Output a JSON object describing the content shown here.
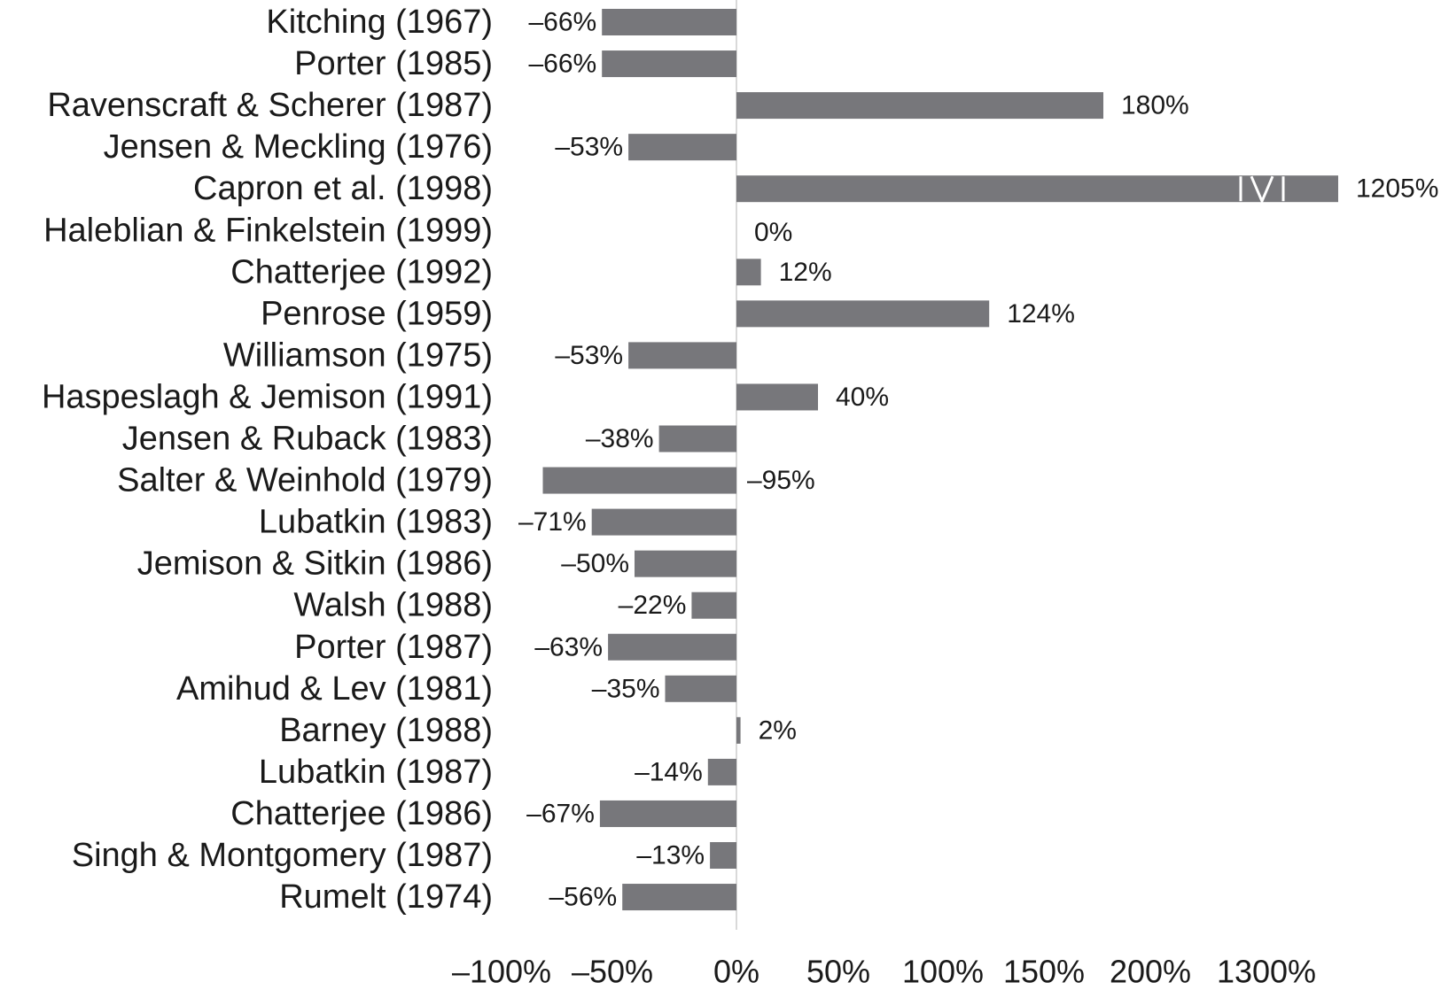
{
  "chart_data": {
    "type": "bar",
    "orientation": "horizontal",
    "categories": [
      "Kitching (1967)",
      "Porter (1985)",
      "Ravenscraft & Scherer (1987)",
      "Jensen & Meckling (1976)",
      "Capron et al. (1998)",
      "Haleblian & Finkelstein (1999)",
      "Chatterjee (1992)",
      "Penrose (1959)",
      "Williamson (1975)",
      "Haspeslagh & Jemison (1991)",
      "Jensen & Ruback (1983)",
      "Salter & Weinhold (1979)",
      "Lubatkin (1983)",
      "Jemison & Sitkin (1986)",
      "Walsh (1988)",
      "Porter (1987)",
      "Amihud & Lev (1981)",
      "Barney (1988)",
      "Lubatkin (1987)",
      "Chatterjee (1986)",
      "Singh & Montgomery (1987)",
      "Rumelt (1974)"
    ],
    "values": [
      -66,
      -66,
      180,
      -53,
      1205,
      0,
      12,
      124,
      -53,
      40,
      -38,
      -95,
      -71,
      -50,
      -22,
      -63,
      -35,
      2,
      -14,
      -67,
      -13,
      -56
    ],
    "data_labels": [
      "–66%",
      "–66%",
      "180%",
      "–53%",
      "1205%",
      "0%",
      "12%",
      "124%",
      "–53%",
      "40%",
      "–38%",
      "–95%",
      "–71%",
      "–50%",
      "–22%",
      "–63%",
      "–35%",
      "2%",
      "–14%",
      "–67%",
      "–13%",
      "–56%"
    ],
    "x_ticks": [
      "–100%",
      "–50%",
      "0%",
      "50%",
      "100%",
      "150%",
      "200%",
      "1300%"
    ],
    "x_tick_values": [
      -100,
      -50,
      0,
      50,
      100,
      150,
      200,
      1300
    ],
    "axis_break": {
      "from": 250,
      "to": 1150
    },
    "xlim": [
      -100,
      1300
    ],
    "title": "",
    "xlabel": "",
    "ylabel": "",
    "grid": false,
    "legend": "none",
    "colors": {
      "bar": "#77777b",
      "zero_line": "#d9d9d9",
      "text": "#1a1a1a"
    }
  }
}
